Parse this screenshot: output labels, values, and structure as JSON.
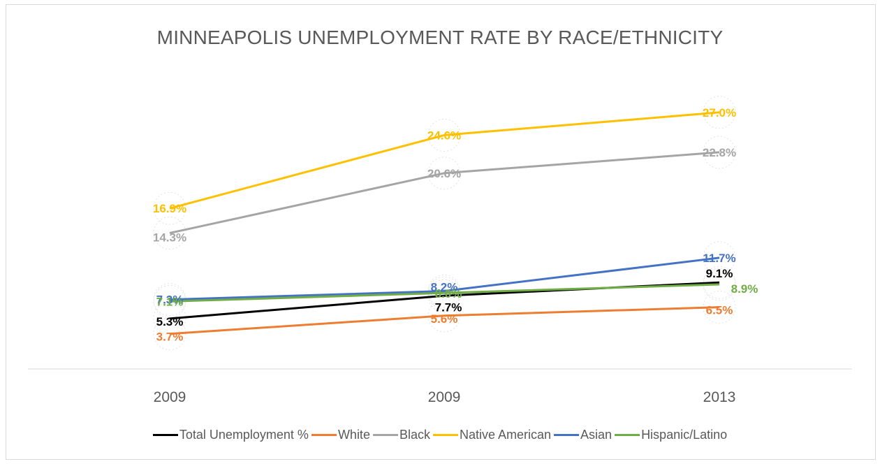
{
  "chart_data": {
    "type": "line",
    "title": "MINNEAPOLIS UNEMPLOYMENT RATE BY RACE/ETHNICITY",
    "categories": [
      "2009",
      "2009",
      "2013"
    ],
    "xlabel": "",
    "ylabel": "",
    "ylim": [
      0,
      30
    ],
    "grid": false,
    "legend": "bottom",
    "series": [
      {
        "name": "Total Unemployment %",
        "color": "#000000",
        "values": [
          5.3,
          7.7,
          9.1
        ],
        "labels": [
          "5.3%",
          "7.7%",
          "9.1%"
        ]
      },
      {
        "name": "White",
        "color": "#ED7D31",
        "values": [
          3.7,
          5.6,
          6.5
        ],
        "labels": [
          "3.7%",
          "5.6%",
          "6.5%"
        ]
      },
      {
        "name": "Black",
        "color": "#A5A5A5",
        "values": [
          14.3,
          20.6,
          22.8
        ],
        "labels": [
          "14.3%",
          "20.6%",
          "22.8%"
        ]
      },
      {
        "name": "Native American",
        "color": "#FFC000",
        "values": [
          16.9,
          24.6,
          27.0
        ],
        "labels": [
          "16.9%",
          "24.6%",
          "27.0%"
        ]
      },
      {
        "name": "Asian",
        "color": "#4472C4",
        "values": [
          7.3,
          8.2,
          11.7
        ],
        "labels": [
          "7.3%",
          "8.2%",
          "11.7%"
        ]
      },
      {
        "name": "Hispanic/Latino",
        "color": "#70AD47",
        "values": [
          7.1,
          8.0,
          8.9
        ],
        "labels": [
          "7.1%",
          "8.0%",
          "8.9%"
        ]
      }
    ]
  }
}
